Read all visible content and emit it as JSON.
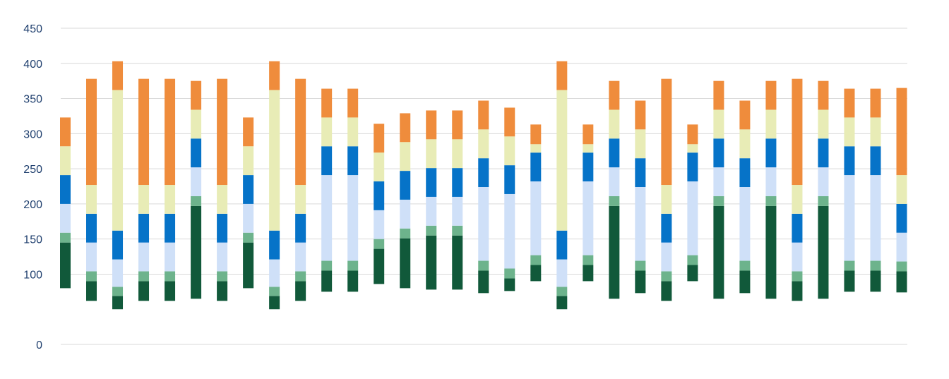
{
  "chart_data": {
    "type": "bar",
    "stacked": true,
    "title": "",
    "xlabel": "",
    "ylabel": "",
    "grid": true,
    "legend": "none",
    "ylim": [
      0,
      450
    ],
    "yticks": [
      0,
      100,
      150,
      200,
      250,
      300,
      350,
      400,
      450
    ],
    "segment_colors": [
      "#11593a",
      "#6db38c",
      "#cfe0f8",
      "#0673c8",
      "#e8ecb6",
      "#ef8c3c"
    ],
    "bars": [
      [
        [
          80,
          145
        ],
        [
          145,
          159
        ],
        [
          159,
          200
        ],
        [
          200,
          241
        ],
        [
          241,
          282
        ],
        [
          282,
          323
        ]
      ],
      [
        [
          62,
          90
        ],
        [
          90,
          104
        ],
        [
          104,
          145
        ],
        [
          145,
          186
        ],
        [
          186,
          227
        ],
        [
          227,
          378
        ]
      ],
      [
        [
          50,
          69
        ],
        [
          69,
          82
        ],
        [
          82,
          121
        ],
        [
          121,
          162
        ],
        [
          162,
          362
        ],
        [
          362,
          403
        ]
      ],
      [
        [
          62,
          90
        ],
        [
          90,
          104
        ],
        [
          104,
          145
        ],
        [
          145,
          186
        ],
        [
          186,
          227
        ],
        [
          227,
          378
        ]
      ],
      [
        [
          62,
          90
        ],
        [
          90,
          104
        ],
        [
          104,
          145
        ],
        [
          145,
          186
        ],
        [
          186,
          227
        ],
        [
          227,
          378
        ]
      ],
      [
        [
          65,
          197
        ],
        [
          197,
          211
        ],
        [
          211,
          252
        ],
        [
          252,
          293
        ],
        [
          293,
          334
        ],
        [
          334,
          375
        ]
      ],
      [
        [
          62,
          90
        ],
        [
          90,
          104
        ],
        [
          104,
          145
        ],
        [
          145,
          186
        ],
        [
          186,
          227
        ],
        [
          227,
          378
        ]
      ],
      [
        [
          80,
          145
        ],
        [
          145,
          159
        ],
        [
          159,
          200
        ],
        [
          200,
          241
        ],
        [
          241,
          282
        ],
        [
          282,
          323
        ]
      ],
      [
        [
          50,
          69
        ],
        [
          69,
          82
        ],
        [
          82,
          121
        ],
        [
          121,
          162
        ],
        [
          162,
          362
        ],
        [
          362,
          403
        ]
      ],
      [
        [
          62,
          90
        ],
        [
          90,
          104
        ],
        [
          104,
          145
        ],
        [
          145,
          186
        ],
        [
          186,
          227
        ],
        [
          227,
          378
        ]
      ],
      [
        [
          75,
          105
        ],
        [
          105,
          119
        ],
        [
          119,
          241
        ],
        [
          241,
          282
        ],
        [
          282,
          323
        ],
        [
          323,
          364
        ]
      ],
      [
        [
          75,
          105
        ],
        [
          105,
          119
        ],
        [
          119,
          241
        ],
        [
          241,
          282
        ],
        [
          282,
          323
        ],
        [
          323,
          364
        ]
      ],
      [
        [
          86,
          136
        ],
        [
          136,
          150
        ],
        [
          150,
          191
        ],
        [
          191,
          232
        ],
        [
          232,
          273
        ],
        [
          273,
          314
        ]
      ],
      [
        [
          80,
          151
        ],
        [
          151,
          165
        ],
        [
          165,
          206
        ],
        [
          206,
          247
        ],
        [
          247,
          288
        ],
        [
          288,
          329
        ]
      ],
      [
        [
          78,
          155
        ],
        [
          155,
          169
        ],
        [
          169,
          210
        ],
        [
          210,
          251
        ],
        [
          251,
          292
        ],
        [
          292,
          333
        ]
      ],
      [
        [
          78,
          155
        ],
        [
          155,
          169
        ],
        [
          169,
          210
        ],
        [
          210,
          251
        ],
        [
          251,
          292
        ],
        [
          292,
          333
        ]
      ],
      [
        [
          73,
          105
        ],
        [
          105,
          119
        ],
        [
          119,
          224
        ],
        [
          224,
          265
        ],
        [
          265,
          306
        ],
        [
          306,
          347
        ]
      ],
      [
        [
          76,
          94
        ],
        [
          94,
          108
        ],
        [
          108,
          214
        ],
        [
          214,
          255
        ],
        [
          255,
          296
        ],
        [
          296,
          337
        ]
      ],
      [
        [
          90,
          113
        ],
        [
          113,
          127
        ],
        [
          127,
          232
        ],
        [
          232,
          273
        ],
        [
          273,
          285
        ],
        [
          285,
          313
        ]
      ],
      [
        [
          50,
          69
        ],
        [
          69,
          82
        ],
        [
          82,
          121
        ],
        [
          121,
          162
        ],
        [
          162,
          362
        ],
        [
          362,
          403
        ]
      ],
      [
        [
          90,
          113
        ],
        [
          113,
          127
        ],
        [
          127,
          232
        ],
        [
          232,
          273
        ],
        [
          273,
          285
        ],
        [
          285,
          313
        ]
      ],
      [
        [
          65,
          197
        ],
        [
          197,
          211
        ],
        [
          211,
          252
        ],
        [
          252,
          293
        ],
        [
          293,
          334
        ],
        [
          334,
          375
        ]
      ],
      [
        [
          73,
          105
        ],
        [
          105,
          119
        ],
        [
          119,
          224
        ],
        [
          224,
          265
        ],
        [
          265,
          306
        ],
        [
          306,
          347
        ]
      ],
      [
        [
          62,
          90
        ],
        [
          90,
          104
        ],
        [
          104,
          145
        ],
        [
          145,
          186
        ],
        [
          186,
          227
        ],
        [
          227,
          378
        ]
      ],
      [
        [
          90,
          113
        ],
        [
          113,
          127
        ],
        [
          127,
          232
        ],
        [
          232,
          273
        ],
        [
          273,
          285
        ],
        [
          285,
          313
        ]
      ],
      [
        [
          65,
          197
        ],
        [
          197,
          211
        ],
        [
          211,
          252
        ],
        [
          252,
          293
        ],
        [
          293,
          334
        ],
        [
          334,
          375
        ]
      ],
      [
        [
          73,
          105
        ],
        [
          105,
          119
        ],
        [
          119,
          224
        ],
        [
          224,
          265
        ],
        [
          265,
          306
        ],
        [
          306,
          347
        ]
      ],
      [
        [
          65,
          197
        ],
        [
          197,
          211
        ],
        [
          211,
          252
        ],
        [
          252,
          293
        ],
        [
          293,
          334
        ],
        [
          334,
          375
        ]
      ],
      [
        [
          62,
          90
        ],
        [
          90,
          104
        ],
        [
          104,
          145
        ],
        [
          145,
          186
        ],
        [
          186,
          227
        ],
        [
          227,
          378
        ]
      ],
      [
        [
          65,
          197
        ],
        [
          197,
          211
        ],
        [
          211,
          252
        ],
        [
          252,
          293
        ],
        [
          293,
          334
        ],
        [
          334,
          375
        ]
      ],
      [
        [
          75,
          105
        ],
        [
          105,
          119
        ],
        [
          119,
          241
        ],
        [
          241,
          282
        ],
        [
          282,
          323
        ],
        [
          323,
          364
        ]
      ],
      [
        [
          75,
          105
        ],
        [
          105,
          119
        ],
        [
          119,
          241
        ],
        [
          241,
          282
        ],
        [
          282,
          323
        ],
        [
          323,
          364
        ]
      ],
      [
        [
          74,
          104
        ],
        [
          104,
          118
        ],
        [
          118,
          159
        ],
        [
          159,
          200
        ],
        [
          200,
          241
        ],
        [
          241,
          365
        ]
      ]
    ]
  }
}
